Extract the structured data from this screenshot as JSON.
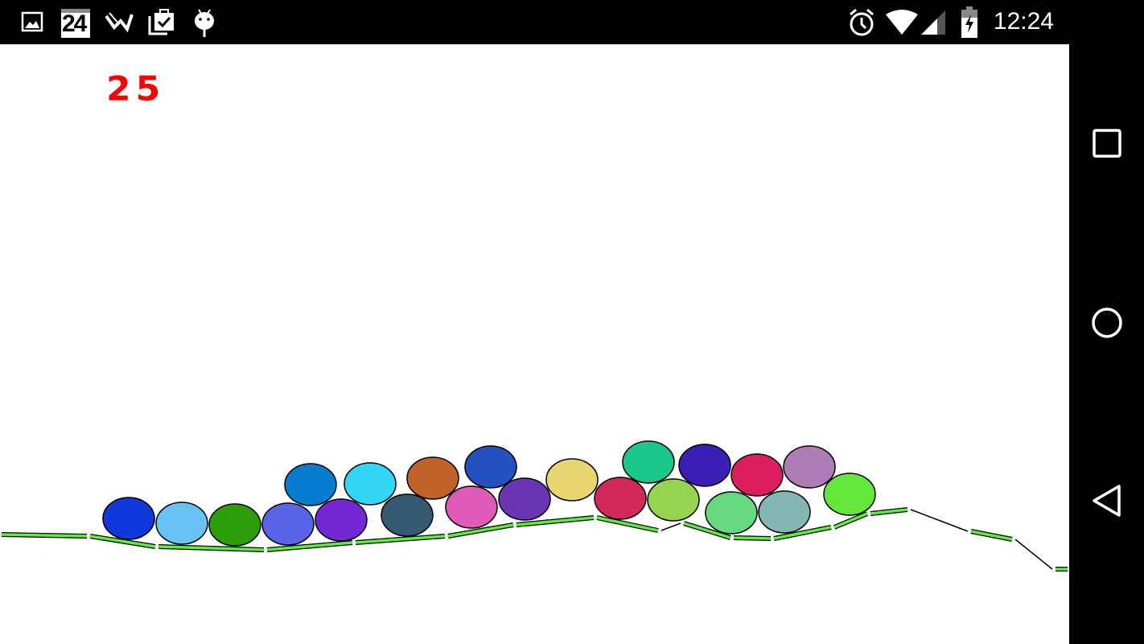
{
  "status_bar": {
    "time": "12:24",
    "calendar_day": "24",
    "notification_icons": [
      "image-icon",
      "calendar-icon",
      "push-icon",
      "clipboard-check-icon",
      "android-icon"
    ],
    "system_icons": [
      "alarm-icon",
      "wifi-icon",
      "cell-signal-icon",
      "battery-charging-icon"
    ]
  },
  "game": {
    "score": "25",
    "score_color": "#ff0000",
    "terrain_color": "#5cf03a",
    "ball_colors": [
      "#1038dc",
      "#68c3f5",
      "#2d9d0a",
      "#5a64e6",
      "#7428d4",
      "#067dd0",
      "#33d6f4",
      "#365a72",
      "#c0632a",
      "#e05ab8",
      "#2450c0",
      "#6a36b4",
      "#e6d570",
      "#d22a58",
      "#1cc68a",
      "#96d34e",
      "#3a1eb6",
      "#66d880",
      "#dc1e60",
      "#84b6b2",
      "#b07cb8",
      "#64e63a"
    ]
  },
  "nav_bar": {
    "buttons": [
      "recents-button",
      "home-button",
      "back-button"
    ]
  }
}
